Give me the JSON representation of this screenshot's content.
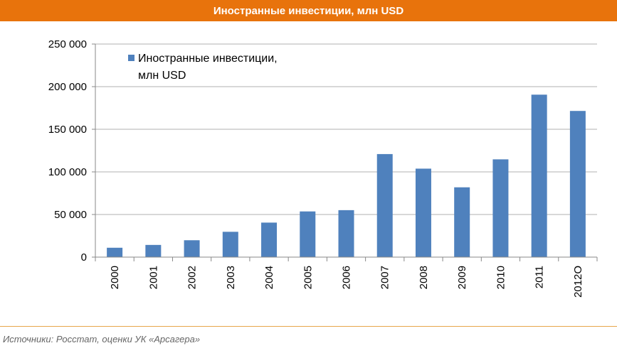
{
  "title": "Иностранные инвестиции, млн USD",
  "source": "Источники: Росстат, оценки УК «Арсагера»",
  "colors": {
    "title_bg": "#E8730C",
    "bar": "#4F81BD",
    "grid": "#B0B0B0",
    "axis": "#888888",
    "footer_line": "#E8A64A"
  },
  "chart_data": {
    "type": "bar",
    "title": "Иностранные инвестиции, млн USD",
    "categories": [
      "2000",
      "2001",
      "2002",
      "2003",
      "2004",
      "2005",
      "2006",
      "2007",
      "2008",
      "2009",
      "2010",
      "2011",
      "2012O"
    ],
    "series": [
      {
        "name": "Иностранные инвестиции, млн USD",
        "values": [
          11000,
          14300,
          19800,
          29700,
          40500,
          53600,
          55100,
          120900,
          103800,
          81900,
          114700,
          190600,
          171500
        ]
      }
    ],
    "legend_lines": [
      "Иностранные инвестиции,",
      "млн USD"
    ],
    "ylim": [
      0,
      250000
    ],
    "yticks": [
      0,
      50000,
      100000,
      150000,
      200000,
      250000
    ],
    "ytick_labels": [
      "0",
      "50 000",
      "100 000",
      "150 000",
      "200 000",
      "250 000"
    ],
    "grid": true,
    "legend_position": "top-left"
  }
}
